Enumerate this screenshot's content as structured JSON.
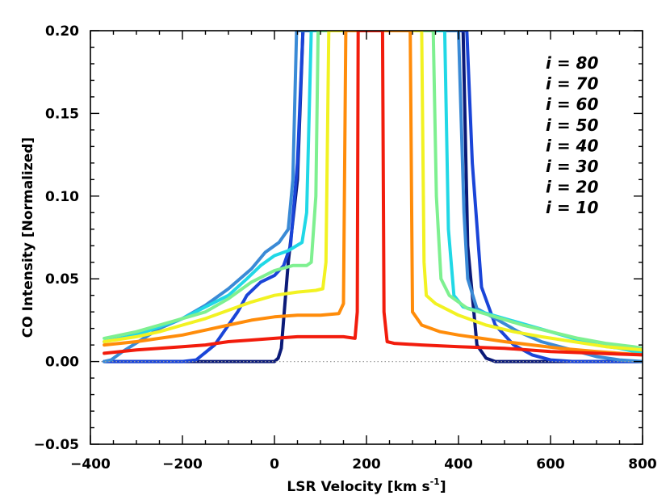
{
  "chart_data": {
    "type": "line",
    "title": "",
    "xlabel_main": "LSR Velocity [km s",
    "xlabel_exp": "-1",
    "xlabel_close": "]",
    "ylabel": "CO Intensity [Normalized]",
    "xlim": [
      -400,
      800
    ],
    "ylim": [
      -0.05,
      0.2
    ],
    "xticks": [
      -400,
      -200,
      0,
      200,
      400,
      600,
      800
    ],
    "xtick_labels": [
      "−400",
      "−200",
      "0",
      "200",
      "400",
      "600",
      "800"
    ],
    "yticks": [
      -0.05,
      0.0,
      0.05,
      0.1,
      0.15,
      0.2
    ],
    "ytick_labels": [
      "−0.05",
      "0.00",
      "0.05",
      "0.10",
      "0.15",
      "0.20"
    ],
    "zero_line": true,
    "legend_position": "top-right",
    "series": [
      {
        "name": "i = 80",
        "color": "#0b1a78",
        "points": [
          [
            -370,
            0
          ],
          [
            -200,
            0
          ],
          [
            0,
            0
          ],
          [
            8,
            0.002
          ],
          [
            15,
            0.008
          ],
          [
            30,
            0.06
          ],
          [
            50,
            0.11
          ],
          [
            62,
            0.2
          ],
          [
            410,
            0.2
          ],
          [
            420,
            0.07
          ],
          [
            440,
            0.01
          ],
          [
            460,
            0.002
          ],
          [
            480,
            0
          ],
          [
            800,
            0
          ]
        ]
      },
      {
        "name": "i = 70",
        "color": "#1a45d8",
        "points": [
          [
            -370,
            0
          ],
          [
            -200,
            0
          ],
          [
            -170,
            0.001
          ],
          [
            -130,
            0.01
          ],
          [
            -100,
            0.022
          ],
          [
            -80,
            0.03
          ],
          [
            -60,
            0.04
          ],
          [
            -30,
            0.048
          ],
          [
            0,
            0.052
          ],
          [
            20,
            0.058
          ],
          [
            35,
            0.07
          ],
          [
            50,
            0.12
          ],
          [
            62,
            0.2
          ],
          [
            418,
            0.2
          ],
          [
            430,
            0.12
          ],
          [
            450,
            0.045
          ],
          [
            480,
            0.022
          ],
          [
            520,
            0.01
          ],
          [
            560,
            0.004
          ],
          [
            600,
            0.001
          ],
          [
            650,
            0
          ],
          [
            800,
            0
          ]
        ]
      },
      {
        "name": "i = 60",
        "color": "#3a8ad6",
        "points": [
          [
            -370,
            0
          ],
          [
            -355,
            0.001
          ],
          [
            -330,
            0.006
          ],
          [
            -290,
            0.013
          ],
          [
            -250,
            0.02
          ],
          [
            -200,
            0.026
          ],
          [
            -150,
            0.034
          ],
          [
            -100,
            0.044
          ],
          [
            -50,
            0.056
          ],
          [
            -20,
            0.066
          ],
          [
            10,
            0.072
          ],
          [
            30,
            0.08
          ],
          [
            40,
            0.11
          ],
          [
            48,
            0.2
          ],
          [
            400,
            0.2
          ],
          [
            412,
            0.09
          ],
          [
            420,
            0.05
          ],
          [
            440,
            0.032
          ],
          [
            480,
            0.026
          ],
          [
            530,
            0.018
          ],
          [
            580,
            0.012
          ],
          [
            620,
            0.009
          ],
          [
            660,
            0.006
          ],
          [
            700,
            0.003
          ],
          [
            750,
            0.001
          ],
          [
            800,
            0
          ]
        ]
      },
      {
        "name": "i = 50",
        "color": "#20d8e6",
        "points": [
          [
            -370,
            0.012
          ],
          [
            -320,
            0.015
          ],
          [
            -280,
            0.018
          ],
          [
            -240,
            0.022
          ],
          [
            -200,
            0.026
          ],
          [
            -150,
            0.033
          ],
          [
            -100,
            0.04
          ],
          [
            -60,
            0.05
          ],
          [
            -30,
            0.058
          ],
          [
            0,
            0.064
          ],
          [
            30,
            0.067
          ],
          [
            60,
            0.072
          ],
          [
            70,
            0.09
          ],
          [
            80,
            0.2
          ],
          [
            370,
            0.2
          ],
          [
            378,
            0.08
          ],
          [
            390,
            0.04
          ],
          [
            410,
            0.033
          ],
          [
            450,
            0.03
          ],
          [
            500,
            0.026
          ],
          [
            550,
            0.022
          ],
          [
            600,
            0.018
          ],
          [
            650,
            0.014
          ],
          [
            700,
            0.01
          ],
          [
            750,
            0.008
          ],
          [
            800,
            0.005
          ]
        ]
      },
      {
        "name": "i = 40",
        "color": "#7ef090",
        "points": [
          [
            -370,
            0.014
          ],
          [
            -300,
            0.018
          ],
          [
            -250,
            0.022
          ],
          [
            -200,
            0.026
          ],
          [
            -150,
            0.03
          ],
          [
            -100,
            0.038
          ],
          [
            -50,
            0.048
          ],
          [
            0,
            0.055
          ],
          [
            40,
            0.058
          ],
          [
            70,
            0.058
          ],
          [
            80,
            0.06
          ],
          [
            90,
            0.1
          ],
          [
            95,
            0.2
          ],
          [
            345,
            0.2
          ],
          [
            352,
            0.1
          ],
          [
            362,
            0.05
          ],
          [
            380,
            0.04
          ],
          [
            420,
            0.032
          ],
          [
            480,
            0.027
          ],
          [
            540,
            0.022
          ],
          [
            600,
            0.018
          ],
          [
            660,
            0.014
          ],
          [
            720,
            0.011
          ],
          [
            780,
            0.009
          ],
          [
            800,
            0.008
          ]
        ]
      },
      {
        "name": "i = 30",
        "color": "#f2f222",
        "points": [
          [
            -370,
            0.012
          ],
          [
            -300,
            0.015
          ],
          [
            -250,
            0.018
          ],
          [
            -200,
            0.022
          ],
          [
            -150,
            0.026
          ],
          [
            -100,
            0.031
          ],
          [
            -50,
            0.036
          ],
          [
            0,
            0.04
          ],
          [
            50,
            0.042
          ],
          [
            90,
            0.043
          ],
          [
            105,
            0.044
          ],
          [
            112,
            0.06
          ],
          [
            118,
            0.2
          ],
          [
            320,
            0.2
          ],
          [
            325,
            0.06
          ],
          [
            330,
            0.04
          ],
          [
            350,
            0.035
          ],
          [
            400,
            0.028
          ],
          [
            460,
            0.022
          ],
          [
            520,
            0.018
          ],
          [
            580,
            0.015
          ],
          [
            650,
            0.012
          ],
          [
            720,
            0.009
          ],
          [
            800,
            0.007
          ]
        ]
      },
      {
        "name": "i = 20",
        "color": "#ff8c0a",
        "points": [
          [
            -370,
            0.01
          ],
          [
            -300,
            0.012
          ],
          [
            -250,
            0.014
          ],
          [
            -200,
            0.016
          ],
          [
            -150,
            0.019
          ],
          [
            -100,
            0.022
          ],
          [
            -50,
            0.025
          ],
          [
            0,
            0.027
          ],
          [
            50,
            0.028
          ],
          [
            100,
            0.028
          ],
          [
            140,
            0.029
          ],
          [
            150,
            0.035
          ],
          [
            155,
            0.2
          ],
          [
            295,
            0.2
          ],
          [
            300,
            0.03
          ],
          [
            320,
            0.022
          ],
          [
            360,
            0.018
          ],
          [
            400,
            0.016
          ],
          [
            450,
            0.014
          ],
          [
            500,
            0.012
          ],
          [
            560,
            0.01
          ],
          [
            620,
            0.008
          ],
          [
            700,
            0.006
          ],
          [
            800,
            0.004
          ]
        ]
      },
      {
        "name": "i = 10",
        "color": "#f21c0c",
        "points": [
          [
            -370,
            0.005
          ],
          [
            -300,
            0.007
          ],
          [
            -250,
            0.008
          ],
          [
            -200,
            0.009
          ],
          [
            -150,
            0.01
          ],
          [
            -100,
            0.012
          ],
          [
            -50,
            0.013
          ],
          [
            0,
            0.014
          ],
          [
            50,
            0.015
          ],
          [
            100,
            0.015
          ],
          [
            150,
            0.015
          ],
          [
            175,
            0.014
          ],
          [
            180,
            0.03
          ],
          [
            182,
            0.2
          ],
          [
            235,
            0.2
          ],
          [
            238,
            0.03
          ],
          [
            245,
            0.012
          ],
          [
            260,
            0.011
          ],
          [
            320,
            0.01
          ],
          [
            400,
            0.009
          ],
          [
            500,
            0.008
          ],
          [
            600,
            0.006
          ],
          [
            700,
            0.005
          ],
          [
            800,
            0.004
          ]
        ]
      }
    ]
  }
}
